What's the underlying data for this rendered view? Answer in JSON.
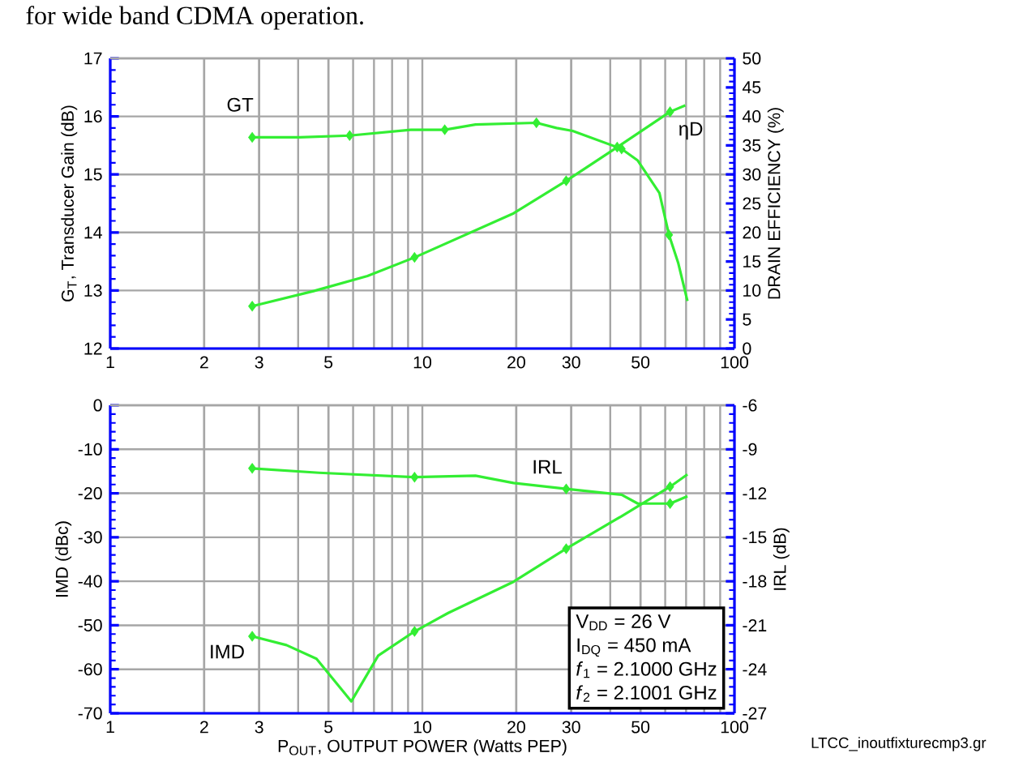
{
  "chart_data": [
    {
      "type": "line",
      "title": "for wide band CDMA operation.",
      "ylabel": "G$_{T}$, Transducer Gain (dB)",
      "y2label": "DRAIN EFFICIENCY (%)",
      "log": "x",
      "grid": true,
      "xlim": [
        1,
        100
      ],
      "xticks": [
        1,
        2,
        3,
        5,
        10,
        20,
        30,
        50,
        100
      ],
      "ylim": [
        12,
        17
      ],
      "yticks": [
        12,
        13,
        14,
        15,
        16,
        17
      ],
      "y2lim": [
        0,
        50
      ],
      "y2ticks": [
        0,
        5,
        10,
        15,
        20,
        25,
        30,
        35,
        40,
        45,
        50
      ],
      "series": [
        {
          "color": "#33ee33",
          "marker": "none",
          "x": [
            2.85,
            4.05,
            5.85,
            9.18,
            11.8,
            14.8,
            23.2,
            26.9,
            30.3,
            43.5,
            49.0,
            57.5,
            61.7,
            66.1,
            70.7
          ],
          "values": [
            15.64,
            15.64,
            15.67,
            15.77,
            15.77,
            15.86,
            15.89,
            15.8,
            15.75,
            15.44,
            15.24,
            14.68,
            13.96,
            13.47,
            12.82
          ]
        },
        {
          "type": "scatter",
          "color": "#33ee33",
          "marker": "diamond",
          "x": [
            2.85,
            5.85,
            11.8,
            23.2,
            43.5,
            61.7
          ],
          "values": [
            15.64,
            15.67,
            15.77,
            15.89,
            15.44,
            13.96
          ]
        },
        {
          "axis": "y2",
          "color": "#33ee33",
          "marker": "none",
          "x": [
            2.85,
            4.48,
            6.67,
            9.44,
            19.6,
            28.9,
            42.1,
            62.2,
            69.6
          ],
          "values": [
            7.3,
            9.9,
            12.5,
            15.7,
            23.3,
            28.9,
            34.7,
            40.8,
            41.9
          ]
        },
        {
          "type": "scatter",
          "axis": "y2",
          "color": "#33ee33",
          "marker": "diamond",
          "x": [
            2.85,
            9.44,
            28.9,
            42.1,
            62.2
          ],
          "values": [
            7.3,
            15.7,
            28.9,
            34.7,
            40.8
          ]
        }
      ],
      "annotations": [
        "GT",
        "ηD"
      ]
    },
    {
      "type": "line",
      "xlabel": "P$_{OUT}$, OUTPUT POWER (Watts PEP)",
      "ylabel": "IMD (dBc)",
      "y2label": "IRL (dB)",
      "log": "x",
      "grid": true,
      "xlim": [
        1,
        100
      ],
      "xticks": [
        1,
        2,
        3,
        5,
        10,
        20,
        30,
        50,
        100
      ],
      "ylim": [
        -70,
        0
      ],
      "yticks": [
        -70,
        -60,
        -50,
        -40,
        -30,
        -20,
        -10,
        0
      ],
      "y2lim": [
        -27,
        -6
      ],
      "y2ticks": [
        -27,
        -24,
        -21,
        -18,
        -15,
        -12,
        -9,
        -6
      ],
      "series": [
        {
          "axis": "y2",
          "color": "#33ee33",
          "marker": "none",
          "x": [
            2.85,
            4.66,
            9.44,
            14.8,
            19.6,
            28.9,
            43.5,
            49.0,
            62.2,
            70.7
          ],
          "values": [
            -10.3,
            -10.6,
            -10.9,
            -10.8,
            -11.3,
            -11.7,
            -12.1,
            -12.7,
            -12.7,
            -12.2
          ]
        },
        {
          "type": "scatter",
          "axis": "y2",
          "color": "#33ee33",
          "marker": "diamond",
          "x": [
            2.85,
            9.44,
            28.9,
            62.2
          ],
          "values": [
            -10.3,
            -10.9,
            -11.7,
            -12.7
          ]
        },
        {
          "color": "#33ee33",
          "marker": "none",
          "x": [
            2.85,
            3.67,
            4.58,
            5.92,
            7.22,
            9.44,
            12.1,
            19.6,
            28.9,
            43.5,
            62.2,
            70.7
          ],
          "values": [
            -52.5,
            -54.5,
            -57.6,
            -67.3,
            -56.9,
            -51.4,
            -47.2,
            -40.1,
            -32.6,
            -25.2,
            -18.5,
            -15.7
          ]
        },
        {
          "type": "scatter",
          "color": "#33ee33",
          "marker": "diamond",
          "x": [
            2.85,
            9.44,
            28.9,
            62.2
          ],
          "values": [
            -52.5,
            -51.4,
            -32.6,
            -18.5
          ]
        }
      ],
      "annotations": [
        "IRL",
        "IMD",
        "V$_{DD}$ = 26 V",
        "I$_{DQ}$ = 450 mA",
        "*f*$_{1}$ = 2.1000 GHz",
        "*f*$_{2}$ = 2.1001 GHz",
        "LTCC_inoutfixturecmp3.gr"
      ]
    }
  ]
}
